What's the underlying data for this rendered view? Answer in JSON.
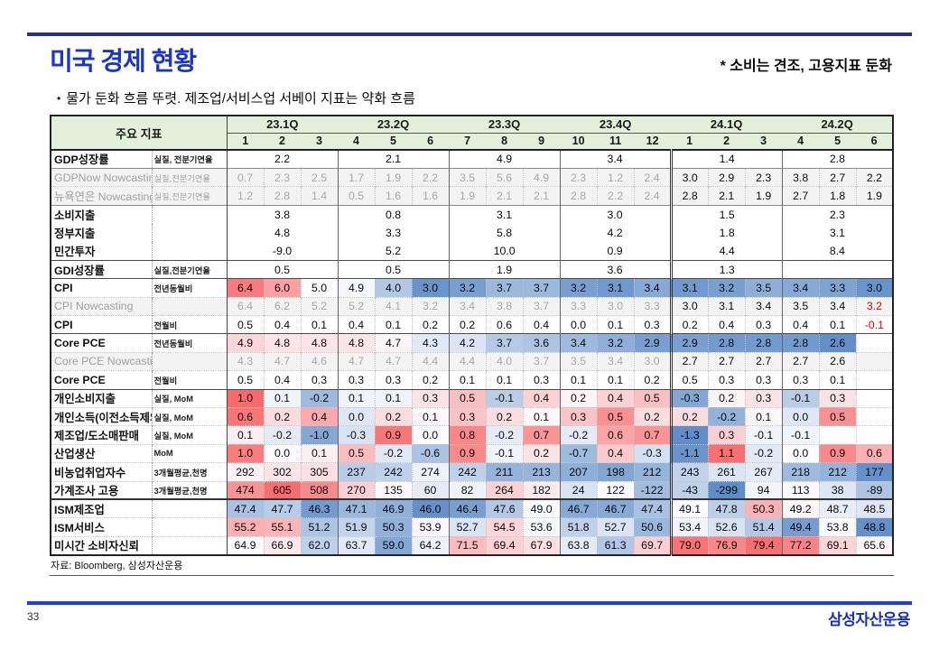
{
  "page": {
    "title": "미국 경제 현황",
    "subtitle": "* 소비는 견조, 고용지표 둔화",
    "bullet_marker": "•",
    "bullet": "물가 둔화 흐름 뚜렷. 제조업/서비스업 서베이 지표는 약화 흐름",
    "source": "자료: Bloomberg, 삼성자산운용",
    "page_number": "33",
    "logo": "삼성자산운용"
  },
  "colors": {
    "title_blue": "#1a35c8",
    "navy_bar": "#27307c",
    "rule_blue": "#1d3fd2",
    "brand_blue": "#1631b8",
    "header_green": "#e2efda",
    "nowcast_gray": "#f3f3f3",
    "negative_red": "#e00000",
    "heat_red": "#f8696b",
    "heat_mid": "#fcfcff",
    "heat_blue": "#5a8ac6"
  },
  "table": {
    "corner_label": "주요 지표",
    "quarters": [
      {
        "label": "23.1Q",
        "months": [
          "1",
          "2",
          "3"
        ]
      },
      {
        "label": "23.2Q",
        "months": [
          "4",
          "5",
          "6"
        ]
      },
      {
        "label": "23.3Q",
        "months": [
          "7",
          "8",
          "9"
        ]
      },
      {
        "label": "23.4Q",
        "months": [
          "10",
          "11",
          "12"
        ]
      },
      {
        "label": "24.1Q",
        "months": [
          "1",
          "2",
          "3"
        ]
      },
      {
        "label": "24.2Q",
        "months": [
          "4",
          "5",
          "6"
        ]
      }
    ],
    "rows": [
      {
        "name": "GDP성장률",
        "unit": "실질, 전분기연율",
        "type": "quarterly",
        "sep": "header",
        "values": [
          "2.2",
          "2.1",
          "4.9",
          "3.4",
          "1.4",
          "2.8"
        ]
      },
      {
        "name": "GDPNow Nowcasting",
        "unit": "실질,전분기연율",
        "type": "nowcast",
        "sep": "solid",
        "values": [
          "0.7",
          "2.3",
          "2.5",
          "1.7",
          "1.9",
          "2.2",
          "3.5",
          "5.6",
          "4.9",
          "2.3",
          "1.2",
          "2.4",
          "3.0",
          "2.9",
          "2.3",
          "3.8",
          "2.7",
          "2.2"
        ]
      },
      {
        "name": "뉴욕연은 Nowcasting",
        "unit": "실질,전분기연율",
        "type": "nowcast",
        "sep": "dotted",
        "values": [
          "1.2",
          "2.8",
          "1.4",
          "0.5",
          "1.6",
          "1.6",
          "1.9",
          "2.1",
          "2.1",
          "2.8",
          "2.2",
          "2.4",
          "2.8",
          "2.1",
          "1.9",
          "2.7",
          "1.8",
          "1.9"
        ]
      },
      {
        "name": "소비지출",
        "unit": "",
        "type": "quarterly",
        "sep": "solid",
        "values": [
          "3.8",
          "0.8",
          "3.1",
          "3.0",
          "1.5",
          "2.3"
        ]
      },
      {
        "name": "정부지출",
        "unit": "",
        "type": "quarterly",
        "sep": "none",
        "values": [
          "4.8",
          "3.3",
          "5.8",
          "4.2",
          "1.8",
          "3.1"
        ]
      },
      {
        "name": "민간투자",
        "unit": "",
        "type": "quarterly",
        "sep": "none",
        "values": [
          "-9.0",
          "5.2",
          "10.0",
          "0.9",
          "4.4",
          "8.4"
        ]
      },
      {
        "name": "GDI성장률",
        "unit": "실질,전분기연율",
        "type": "quarterly",
        "sep": "strong",
        "values": [
          "0.5",
          "0.5",
          "1.9",
          "3.6",
          "1.3",
          ""
        ]
      },
      {
        "name": "CPI",
        "unit": "전년동월비",
        "type": "heat",
        "sep": "strong",
        "scale": {
          "min": 2.8,
          "mid": 5.0,
          "max": 6.6
        },
        "values": [
          "6.4",
          "6.0",
          "5.0",
          "4.9",
          "4.0",
          "3.0",
          "3.2",
          "3.7",
          "3.7",
          "3.2",
          "3.1",
          "3.4",
          "3.1",
          "3.2",
          "3.5",
          "3.4",
          "3.3",
          "3.0"
        ]
      },
      {
        "name": "CPI Nowcasting",
        "unit": "",
        "type": "nowcast",
        "sep": "dotted",
        "red_cells": [
          17
        ],
        "values": [
          "6.4",
          "6.2",
          "5.2",
          "5.2",
          "4.1",
          "3.2",
          "3.4",
          "3.8",
          "3.7",
          "3.3",
          "3.0",
          "3.3",
          "3.0",
          "3.1",
          "3.4",
          "3.5",
          "3.4",
          "3.2"
        ]
      },
      {
        "name": "CPI",
        "unit": "전월비",
        "type": "plain",
        "sep": "dotted",
        "red_cells": [
          17
        ],
        "values": [
          "0.5",
          "0.4",
          "0.1",
          "0.4",
          "0.1",
          "0.2",
          "0.2",
          "0.6",
          "0.4",
          "0.0",
          "0.1",
          "0.3",
          "0.2",
          "0.4",
          "0.3",
          "0.4",
          "0.1",
          "-0.1"
        ]
      },
      {
        "name": "Core PCE",
        "unit": "전년동월비",
        "type": "heat",
        "sep": "strong",
        "scale": {
          "min": 2.5,
          "mid": 4.65,
          "max": 5.6
        },
        "values": [
          "4.9",
          "4.8",
          "4.8",
          "4.8",
          "4.7",
          "4.3",
          "4.2",
          "3.7",
          "3.6",
          "3.4",
          "3.2",
          "2.9",
          "2.9",
          "2.8",
          "2.8",
          "2.8",
          "2.6",
          ""
        ]
      },
      {
        "name": "Core PCE Nowcasting",
        "unit": "",
        "type": "nowcast",
        "sep": "dotted",
        "values": [
          "4.3",
          "4.7",
          "4.6",
          "4.7",
          "4.7",
          "4.4",
          "4.4",
          "4.0",
          "3.7",
          "3.5",
          "3.4",
          "3.0",
          "2.7",
          "2.7",
          "2.7",
          "2.7",
          "2.6",
          ""
        ]
      },
      {
        "name": "Core PCE",
        "unit": "전월비",
        "type": "plain",
        "sep": "dotted",
        "values": [
          "0.5",
          "0.4",
          "0.3",
          "0.3",
          "0.3",
          "0.2",
          "0.1",
          "0.1",
          "0.3",
          "0.1",
          "0.1",
          "0.2",
          "0.5",
          "0.3",
          "0.3",
          "0.3",
          "0.1",
          ""
        ]
      },
      {
        "name": "개인소비지출",
        "unit": "실질, MoM",
        "type": "heat",
        "sep": "strong",
        "scale": {
          "min": -0.45,
          "mid": 0.15,
          "max": 1.0
        },
        "values": [
          "1.0",
          "0.1",
          "-0.2",
          "0.1",
          "0.1",
          "0.3",
          "0.5",
          "-0.1",
          "0.4",
          "0.2",
          "0.4",
          "0.5",
          "-0.3",
          "0.2",
          "0.3",
          "-0.1",
          "0.3",
          ""
        ]
      },
      {
        "name": "개인소득(이전소득제외)",
        "unit": "실질, MoM",
        "type": "heat",
        "sep": "dotted",
        "scale": {
          "min": -0.35,
          "mid": 0.08,
          "max": 0.65
        },
        "values": [
          "0.6",
          "0.2",
          "0.4",
          "0.0",
          "0.2",
          "0.1",
          "0.3",
          "0.2",
          "0.1",
          "0.3",
          "0.5",
          "0.2",
          "0.2",
          "-0.2",
          "0.1",
          "0.0",
          "0.5",
          ""
        ]
      },
      {
        "name": "제조업/도소매판매",
        "unit": "실질, MoM",
        "type": "heat",
        "sep": "dotted",
        "scale": {
          "min": -1.35,
          "mid": 0.0,
          "max": 1.0
        },
        "values": [
          "0.1",
          "-0.2",
          "-1.0",
          "-0.3",
          "0.9",
          "0.0",
          "0.8",
          "-0.2",
          "0.7",
          "-0.2",
          "0.6",
          "0.7",
          "-1.3",
          "0.3",
          "-0.1",
          "-0.1",
          "",
          ""
        ]
      },
      {
        "name": "산업생산",
        "unit": "MoM",
        "type": "heat",
        "sep": "dotted",
        "scale": {
          "min": -1.2,
          "mid": 0.0,
          "max": 1.15
        },
        "values": [
          "1.0",
          "0.0",
          "0.1",
          "0.5",
          "-0.2",
          "-0.6",
          "0.9",
          "-0.1",
          "0.2",
          "-0.7",
          "0.4",
          "-0.3",
          "-1.1",
          "1.1",
          "-0.2",
          "0.0",
          "0.9",
          "0.6"
        ]
      },
      {
        "name": "비농업취업자수",
        "unit": "3개월평균,천명",
        "type": "heat",
        "sep": "dotted",
        "scale": {
          "min": 170,
          "mid": 285,
          "max": 390
        },
        "values": [
          "292",
          "302",
          "305",
          "237",
          "242",
          "274",
          "242",
          "211",
          "213",
          "207",
          "198",
          "212",
          "243",
          "261",
          "267",
          "218",
          "212",
          "177"
        ]
      },
      {
        "name": "가계조사 고용",
        "unit": "3개월평균,천명",
        "type": "heat",
        "sep": "dotted",
        "scale": {
          "min": -310,
          "mid": 120,
          "max": 620
        },
        "values": [
          "474",
          "605",
          "508",
          "270",
          "135",
          "60",
          "82",
          "264",
          "182",
          "24",
          "122",
          "-122",
          "-43",
          "-299",
          "94",
          "113",
          "38",
          "-89"
        ]
      },
      {
        "name": "ISM제조업",
        "unit": "",
        "type": "heat",
        "sep": "strong2",
        "scale": {
          "min": 45.8,
          "mid": 49.1,
          "max": 51.5
        },
        "values": [
          "47.4",
          "47.7",
          "46.3",
          "47.1",
          "46.9",
          "46.0",
          "46.4",
          "47.6",
          "49.0",
          "46.7",
          "46.7",
          "47.4",
          "49.1",
          "47.8",
          "50.3",
          "49.2",
          "48.7",
          "48.5"
        ]
      },
      {
        "name": "ISM서비스",
        "unit": "",
        "type": "heat",
        "sep": "dotted",
        "scale": {
          "min": 48.5,
          "mid": 53.8,
          "max": 56.5
        },
        "values": [
          "55.2",
          "55.1",
          "51.2",
          "51.9",
          "50.3",
          "53.9",
          "52.7",
          "54.5",
          "53.6",
          "51.8",
          "52.7",
          "50.6",
          "53.4",
          "52.6",
          "51.4",
          "49.4",
          "53.8",
          "48.8"
        ]
      },
      {
        "name": "미시간 소비자신뢰",
        "unit": "",
        "type": "heat",
        "sep": "dotted",
        "scale": {
          "min": 57,
          "mid": 65,
          "max": 80
        },
        "values": [
          "64.9",
          "66.9",
          "62.0",
          "63.7",
          "59.0",
          "64.2",
          "71.5",
          "69.4",
          "67.9",
          "63.8",
          "61.3",
          "69.7",
          "79.0",
          "76.9",
          "79.4",
          "77.2",
          "69.1",
          "65.6"
        ]
      }
    ]
  }
}
